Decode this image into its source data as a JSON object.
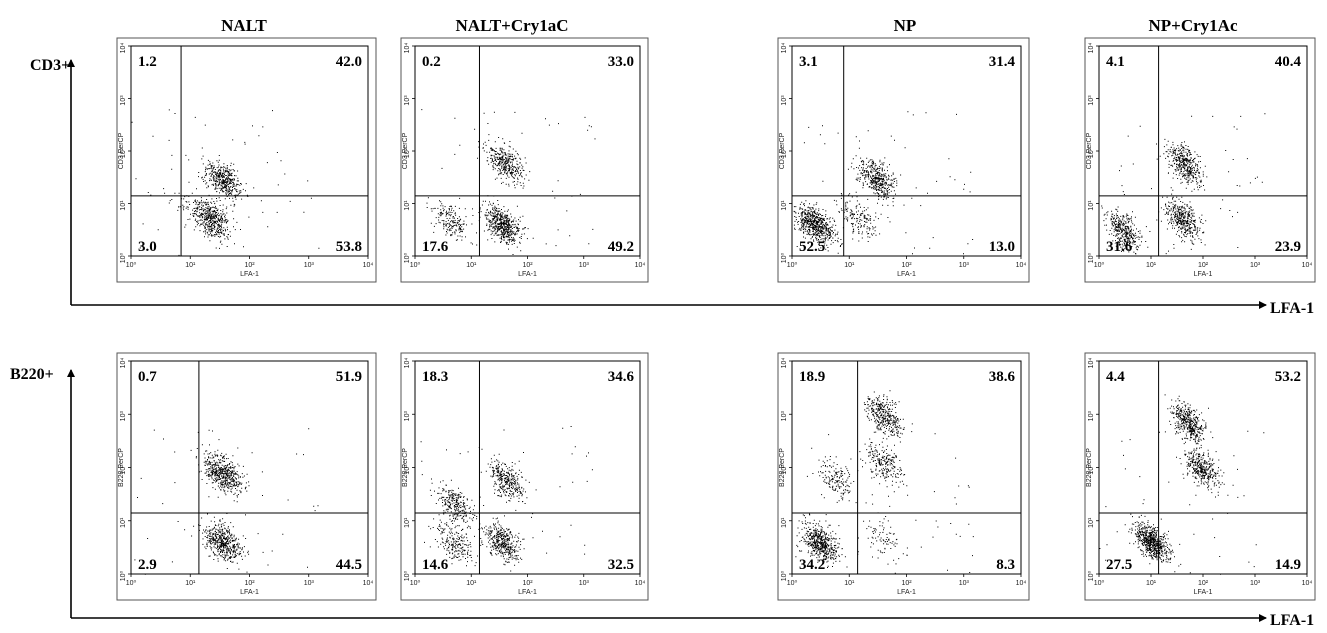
{
  "figure": {
    "columns": [
      "NALT",
      "NALT+Cry1aC",
      "NP",
      "NP+Cry1Ac"
    ],
    "rows": [
      {
        "label": "CD3+",
        "axis_label": "LFA-1"
      },
      {
        "label": "B220+",
        "axis_label": "LFA-1"
      }
    ],
    "panel_xlabel": "LFA-1",
    "tick_labels": [
      "10⁰",
      "10¹",
      "10²",
      "10³",
      "10⁴"
    ]
  },
  "chart_data": [
    {
      "type": "scatter",
      "title": "NALT",
      "row_label": "CD3+",
      "xlabel": "LFA-1",
      "ylabel": "CD3 PerCP",
      "xscale": "log",
      "yscale": "log",
      "xlim": [
        1,
        10000
      ],
      "ylim": [
        1,
        10000
      ],
      "gate": [
        7,
        14
      ],
      "quadrants": {
        "UL": "1.2",
        "UR": "42.0",
        "LL": "3.0",
        "LR": "53.8"
      },
      "clusters": [
        {
          "x": 36,
          "y": 28,
          "n": 440
        },
        {
          "x": 23,
          "y": 5,
          "n": 480
        },
        {
          "x": 8,
          "y": 10,
          "n": 40
        }
      ]
    },
    {
      "type": "scatter",
      "title": "NALT+Cry1aC",
      "row_label": "CD3+",
      "xlabel": "LFA-1",
      "ylabel": "CD3 PerCP",
      "xscale": "log",
      "yscale": "log",
      "xlim": [
        1,
        10000
      ],
      "ylim": [
        1,
        10000
      ],
      "gate": [
        14,
        14
      ],
      "quadrants": {
        "UL": "0.2",
        "UR": "33.0",
        "LL": "17.6",
        "LR": "49.2"
      },
      "clusters": [
        {
          "x": 40,
          "y": 60,
          "n": 350
        },
        {
          "x": 35,
          "y": 4,
          "n": 520
        },
        {
          "x": 4,
          "y": 5,
          "n": 180
        }
      ]
    },
    {
      "type": "scatter",
      "title": "NP",
      "row_label": "CD3+",
      "xlabel": "LFA-1",
      "ylabel": "CD3 PerCP",
      "xscale": "log",
      "yscale": "log",
      "xlim": [
        1,
        10000
      ],
      "ylim": [
        1,
        10000
      ],
      "gate": [
        8,
        14
      ],
      "quadrants": {
        "UL": "3.1",
        "UR": "31.4",
        "LL": "52.5",
        "LR": "13.0"
      },
      "clusters": [
        {
          "x": 30,
          "y": 30,
          "n": 420
        },
        {
          "x": 2.5,
          "y": 4,
          "n": 620
        },
        {
          "x": 15,
          "y": 5,
          "n": 160
        }
      ]
    },
    {
      "type": "scatter",
      "title": "NP+Cry1Ac",
      "row_label": "CD3+",
      "xlabel": "LFA-1",
      "ylabel": "CD3 PerCP",
      "xscale": "log",
      "yscale": "log",
      "xlim": [
        1,
        10000
      ],
      "ylim": [
        1,
        10000
      ],
      "gate": [
        14,
        14
      ],
      "quadrants": {
        "UL": "4.1",
        "UR": "40.4",
        "LL": "31.6",
        "LR": "23.9"
      },
      "clusters": [
        {
          "x": 45,
          "y": 55,
          "n": 420
        },
        {
          "x": 3,
          "y": 3,
          "n": 360
        },
        {
          "x": 40,
          "y": 5,
          "n": 400
        }
      ]
    },
    {
      "type": "scatter",
      "title": "NALT",
      "row_label": "B220+",
      "xlabel": "LFA-1",
      "ylabel": "B220 PerCP",
      "xscale": "log",
      "yscale": "log",
      "xlim": [
        1,
        10000
      ],
      "ylim": [
        1,
        10000
      ],
      "gate": [
        14,
        14
      ],
      "quadrants": {
        "UL": "0.7",
        "UR": "51.9",
        "LL": "2.9",
        "LR": "44.5"
      },
      "clusters": [
        {
          "x": 35,
          "y": 80,
          "n": 520
        },
        {
          "x": 35,
          "y": 4,
          "n": 480
        }
      ]
    },
    {
      "type": "scatter",
      "title": "NALT+Cry1aC",
      "row_label": "B220+",
      "xlabel": "LFA-1",
      "ylabel": "B220 PerCP",
      "xscale": "log",
      "yscale": "log",
      "xlim": [
        1,
        10000
      ],
      "ylim": [
        1,
        10000
      ],
      "gate": [
        14,
        14
      ],
      "quadrants": {
        "UL": "18.3",
        "UR": "34.6",
        "LL": "14.6",
        "LR": "32.5"
      },
      "clusters": [
        {
          "x": 40,
          "y": 60,
          "n": 320
        },
        {
          "x": 35,
          "y": 4,
          "n": 380
        },
        {
          "x": 5,
          "y": 20,
          "n": 260
        },
        {
          "x": 5,
          "y": 4,
          "n": 200
        }
      ]
    },
    {
      "type": "scatter",
      "title": "NP",
      "row_label": "B220+",
      "xlabel": "LFA-1",
      "ylabel": "B220 PerCP",
      "xscale": "log",
      "yscale": "log",
      "xlim": [
        1,
        10000
      ],
      "ylim": [
        1,
        10000
      ],
      "gate": [
        14,
        14
      ],
      "quadrants": {
        "UL": "18.9",
        "UR": "38.6",
        "LL": "34.2",
        "LR": "8.3"
      },
      "clusters": [
        {
          "x": 40,
          "y": 900,
          "n": 360
        },
        {
          "x": 40,
          "y": 120,
          "n": 220
        },
        {
          "x": 3,
          "y": 4,
          "n": 520
        },
        {
          "x": 6,
          "y": 60,
          "n": 160
        },
        {
          "x": 35,
          "y": 5,
          "n": 80
        }
      ]
    },
    {
      "type": "scatter",
      "title": "NP+Cry1Ac",
      "row_label": "B220+",
      "xlabel": "LFA-1",
      "ylabel": "B220 PerCP",
      "xscale": "log",
      "yscale": "log",
      "xlim": [
        1,
        10000
      ],
      "ylim": [
        1,
        10000
      ],
      "gate": [
        14,
        14
      ],
      "quadrants": {
        "UL": "4.4",
        "UR": "53.2",
        "LL": "27.5",
        "LR": "14.9"
      },
      "clusters": [
        {
          "x": 50,
          "y": 700,
          "n": 420
        },
        {
          "x": 90,
          "y": 100,
          "n": 360
        },
        {
          "x": 10,
          "y": 4,
          "n": 620
        }
      ]
    }
  ]
}
